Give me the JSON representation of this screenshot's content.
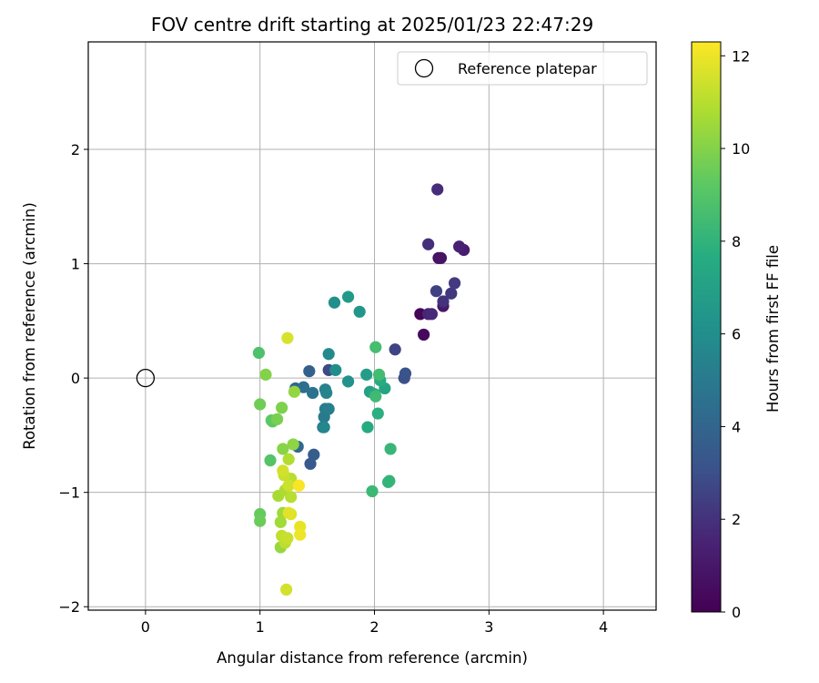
{
  "chart_data": {
    "type": "scatter",
    "title": "FOV centre drift starting at 2025/01/23 22:47:29",
    "xlabel": "Angular distance from reference (arcmin)",
    "ylabel": "Rotation from reference (arcmin)",
    "xlim": [
      -0.5,
      4.46
    ],
    "ylim": [
      -2.03,
      2.94
    ],
    "xticks": [
      0,
      1,
      2,
      3,
      4
    ],
    "xtick_labels": [
      "0",
      "1",
      "2",
      "3",
      "4"
    ],
    "yticks": [
      -2,
      -1,
      0,
      1,
      2
    ],
    "ytick_labels": [
      "−2",
      "−1",
      "0",
      "1",
      "2"
    ],
    "grid": true,
    "legend": {
      "position": "top-right",
      "entries": [
        "Reference platepar"
      ]
    },
    "reference_point": {
      "x": 0,
      "y": 0,
      "label": "Reference platepar"
    },
    "colorbar": {
      "label": "Hours from first FF file",
      "min": 0,
      "max": 12.3,
      "ticks": [
        0,
        2,
        4,
        6,
        8,
        10,
        12
      ],
      "tick_labels": [
        "0",
        "2",
        "4",
        "6",
        "8",
        "10",
        "12"
      ],
      "colormap": "viridis"
    },
    "points": [
      {
        "x": 2.4,
        "y": 0.56,
        "hours": 0.2
      },
      {
        "x": 2.43,
        "y": 0.38,
        "hours": 0.4
      },
      {
        "x": 2.56,
        "y": 1.05,
        "hours": 0.6
      },
      {
        "x": 2.58,
        "y": 1.05,
        "hours": 0.8
      },
      {
        "x": 2.6,
        "y": 0.63,
        "hours": 1.0
      },
      {
        "x": 2.78,
        "y": 1.12,
        "hours": 1.2
      },
      {
        "x": 2.74,
        "y": 1.15,
        "hours": 1.4
      },
      {
        "x": 2.47,
        "y": 0.56,
        "hours": 1.6
      },
      {
        "x": 2.5,
        "y": 0.56,
        "hours": 1.7
      },
      {
        "x": 2.55,
        "y": 1.65,
        "hours": 1.8
      },
      {
        "x": 2.47,
        "y": 1.17,
        "hours": 1.9
      },
      {
        "x": 2.6,
        "y": 0.67,
        "hours": 2.0
      },
      {
        "x": 2.67,
        "y": 0.74,
        "hours": 2.2
      },
      {
        "x": 2.7,
        "y": 0.83,
        "hours": 2.3
      },
      {
        "x": 2.54,
        "y": 0.76,
        "hours": 2.5
      },
      {
        "x": 2.18,
        "y": 0.25,
        "hours": 2.6
      },
      {
        "x": 1.6,
        "y": 0.07,
        "hours": 2.8
      },
      {
        "x": 2.26,
        "y": 0.0,
        "hours": 3.0
      },
      {
        "x": 2.27,
        "y": 0.04,
        "hours": 3.1
      },
      {
        "x": 1.44,
        "y": -0.75,
        "hours": 3.4
      },
      {
        "x": 1.47,
        "y": -0.67,
        "hours": 3.6
      },
      {
        "x": 1.43,
        "y": 0.06,
        "hours": 3.8
      },
      {
        "x": 1.31,
        "y": -0.09,
        "hours": 4.0
      },
      {
        "x": 1.33,
        "y": -0.6,
        "hours": 4.2
      },
      {
        "x": 1.38,
        "y": -0.08,
        "hours": 4.4
      },
      {
        "x": 1.46,
        "y": -0.13,
        "hours": 4.6
      },
      {
        "x": 1.55,
        "y": -0.43,
        "hours": 4.8
      },
      {
        "x": 1.56,
        "y": -0.34,
        "hours": 5.0
      },
      {
        "x": 1.57,
        "y": -0.27,
        "hours": 5.1
      },
      {
        "x": 1.6,
        "y": -0.27,
        "hours": 5.2
      },
      {
        "x": 1.57,
        "y": -0.1,
        "hours": 5.4
      },
      {
        "x": 1.58,
        "y": -0.13,
        "hours": 5.5
      },
      {
        "x": 1.56,
        "y": -0.43,
        "hours": 5.6
      },
      {
        "x": 1.6,
        "y": 0.21,
        "hours": 5.8
      },
      {
        "x": 1.66,
        "y": 0.07,
        "hours": 6.0
      },
      {
        "x": 1.65,
        "y": 0.66,
        "hours": 6.1
      },
      {
        "x": 1.77,
        "y": -0.03,
        "hours": 6.2
      },
      {
        "x": 1.87,
        "y": 0.58,
        "hours": 6.4
      },
      {
        "x": 1.77,
        "y": 0.71,
        "hours": 6.6
      },
      {
        "x": 1.93,
        "y": 0.03,
        "hours": 6.8
      },
      {
        "x": 1.96,
        "y": -0.12,
        "hours": 7.0
      },
      {
        "x": 2.09,
        "y": -0.09,
        "hours": 7.2
      },
      {
        "x": 2.0,
        "y": -0.14,
        "hours": 7.4
      },
      {
        "x": 1.94,
        "y": -0.43,
        "hours": 7.5
      },
      {
        "x": 2.05,
        "y": -0.02,
        "hours": 7.6
      },
      {
        "x": 2.03,
        "y": -0.31,
        "hours": 7.8
      },
      {
        "x": 2.12,
        "y": -0.91,
        "hours": 8.0
      },
      {
        "x": 2.13,
        "y": -0.9,
        "hours": 8.1
      },
      {
        "x": 2.14,
        "y": -0.62,
        "hours": 8.2
      },
      {
        "x": 1.98,
        "y": -0.99,
        "hours": 8.3
      },
      {
        "x": 2.01,
        "y": -0.16,
        "hours": 8.4
      },
      {
        "x": 2.04,
        "y": 0.03,
        "hours": 8.5
      },
      {
        "x": 2.01,
        "y": 0.27,
        "hours": 8.6
      },
      {
        "x": 0.99,
        "y": 0.22,
        "hours": 8.8
      },
      {
        "x": 1.09,
        "y": -0.72,
        "hours": 9.0
      },
      {
        "x": 1.11,
        "y": -0.38,
        "hours": 9.1
      },
      {
        "x": 1.1,
        "y": -0.37,
        "hours": 9.2
      },
      {
        "x": 1.0,
        "y": -1.19,
        "hours": 9.4
      },
      {
        "x": 1.0,
        "y": -1.25,
        "hours": 9.5
      },
      {
        "x": 1.0,
        "y": -0.23,
        "hours": 9.6
      },
      {
        "x": 1.15,
        "y": -0.36,
        "hours": 9.8
      },
      {
        "x": 1.19,
        "y": -0.26,
        "hours": 9.9
      },
      {
        "x": 1.05,
        "y": 0.03,
        "hours": 10.0
      },
      {
        "x": 1.2,
        "y": -0.62,
        "hours": 10.1
      },
      {
        "x": 1.29,
        "y": -0.58,
        "hours": 10.2
      },
      {
        "x": 1.3,
        "y": -0.12,
        "hours": 10.3
      },
      {
        "x": 1.18,
        "y": -1.48,
        "hours": 10.4
      },
      {
        "x": 1.2,
        "y": -1.18,
        "hours": 10.5
      },
      {
        "x": 1.18,
        "y": -1.26,
        "hours": 10.6
      },
      {
        "x": 1.16,
        "y": -1.03,
        "hours": 10.7
      },
      {
        "x": 1.22,
        "y": -0.98,
        "hours": 10.8
      },
      {
        "x": 1.25,
        "y": -0.71,
        "hours": 10.9
      },
      {
        "x": 1.27,
        "y": -0.88,
        "hours": 11.0
      },
      {
        "x": 1.27,
        "y": -1.04,
        "hours": 11.0
      },
      {
        "x": 1.22,
        "y": -1.44,
        "hours": 11.1
      },
      {
        "x": 1.19,
        "y": -1.38,
        "hours": 11.2
      },
      {
        "x": 1.21,
        "y": -0.85,
        "hours": 11.3
      },
      {
        "x": 1.24,
        "y": -1.4,
        "hours": 11.3
      },
      {
        "x": 1.25,
        "y": -0.94,
        "hours": 11.4
      },
      {
        "x": 1.2,
        "y": -0.81,
        "hours": 11.5
      },
      {
        "x": 1.23,
        "y": -1.85,
        "hours": 11.5
      },
      {
        "x": 1.24,
        "y": 0.35,
        "hours": 11.6
      },
      {
        "x": 1.27,
        "y": -1.19,
        "hours": 11.7
      },
      {
        "x": 1.25,
        "y": -1.18,
        "hours": 11.8
      },
      {
        "x": 1.35,
        "y": -1.3,
        "hours": 11.9
      },
      {
        "x": 1.35,
        "y": -1.37,
        "hours": 12.0
      },
      {
        "x": 1.34,
        "y": -0.94,
        "hours": 12.2
      }
    ]
  }
}
